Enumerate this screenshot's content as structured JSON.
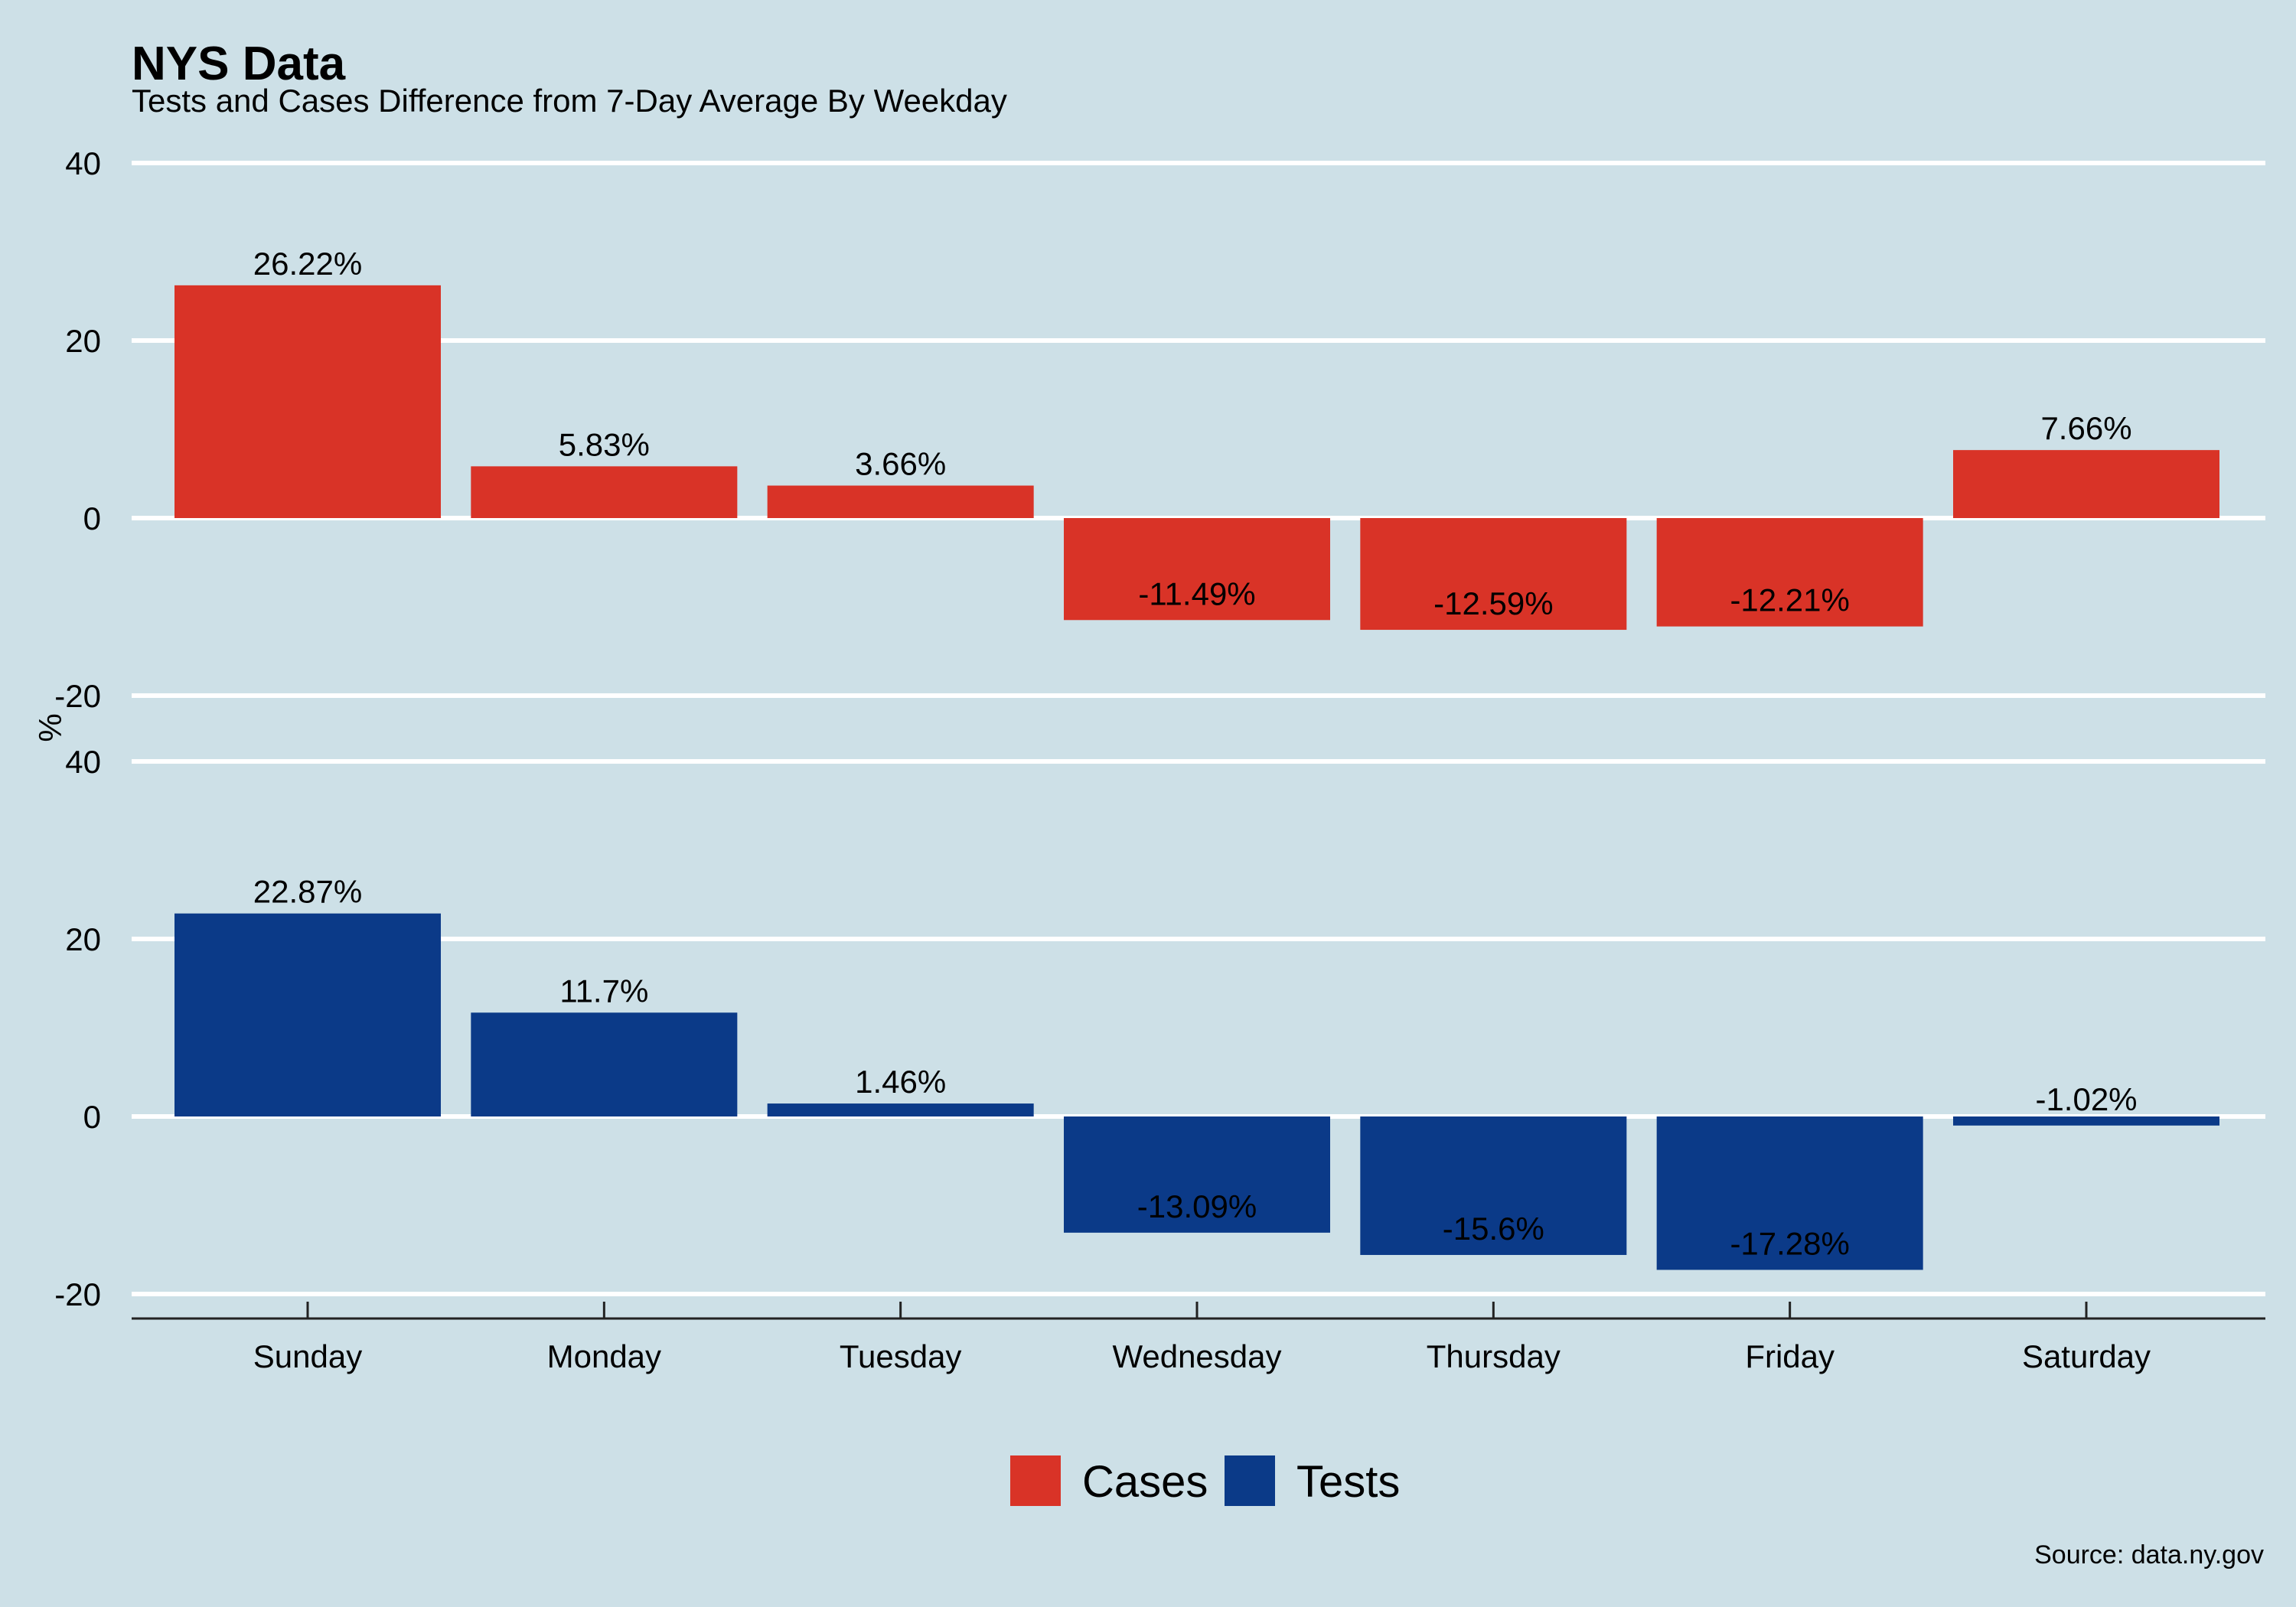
{
  "chart_data": {
    "type": "bar",
    "title": "NYS Data",
    "subtitle": "Tests and Cases Difference from 7-Day Average By Weekday",
    "ylabel": "%",
    "caption": "Source: data.ny.gov",
    "categories": [
      "Sunday",
      "Monday",
      "Tuesday",
      "Wednesday",
      "Thursday",
      "Friday",
      "Saturday"
    ],
    "ylim": [
      -20,
      40
    ],
    "yticks": [
      -20,
      0,
      20,
      40
    ],
    "legend_position": "bottom",
    "grid": true,
    "series": [
      {
        "name": "Cases",
        "color": "#d93327",
        "values": [
          26.22,
          5.83,
          3.66,
          -11.49,
          -12.59,
          -12.21,
          7.66
        ],
        "labels": [
          "26.22%",
          "5.83%",
          "3.66%",
          "-11.49%",
          "-12.59%",
          "-12.21%",
          "7.66%"
        ]
      },
      {
        "name": "Tests",
        "color": "#0b3a88",
        "values": [
          22.87,
          11.7,
          1.46,
          -13.09,
          -15.6,
          -17.28,
          -1.02
        ],
        "labels": [
          "22.87%",
          "11.7%",
          "1.46%",
          "-13.09%",
          "-15.6%",
          "-17.28%",
          "-1.02%"
        ]
      }
    ]
  }
}
